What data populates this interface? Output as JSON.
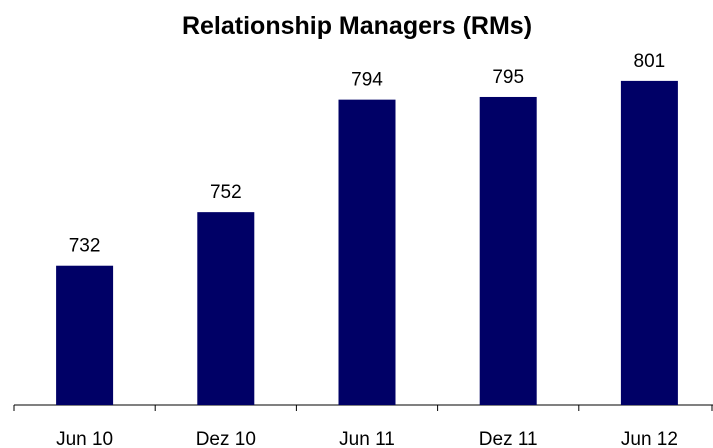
{
  "chart_data": {
    "type": "bar",
    "title": "Relationship Managers (RMs)",
    "categories": [
      "Jun 10",
      "Dez 10",
      "Jun 11",
      "Dez 11",
      "Jun 12"
    ],
    "values": [
      732,
      752,
      794,
      795,
      801
    ],
    "color": "#000066",
    "ylim": [
      680,
      820
    ]
  }
}
